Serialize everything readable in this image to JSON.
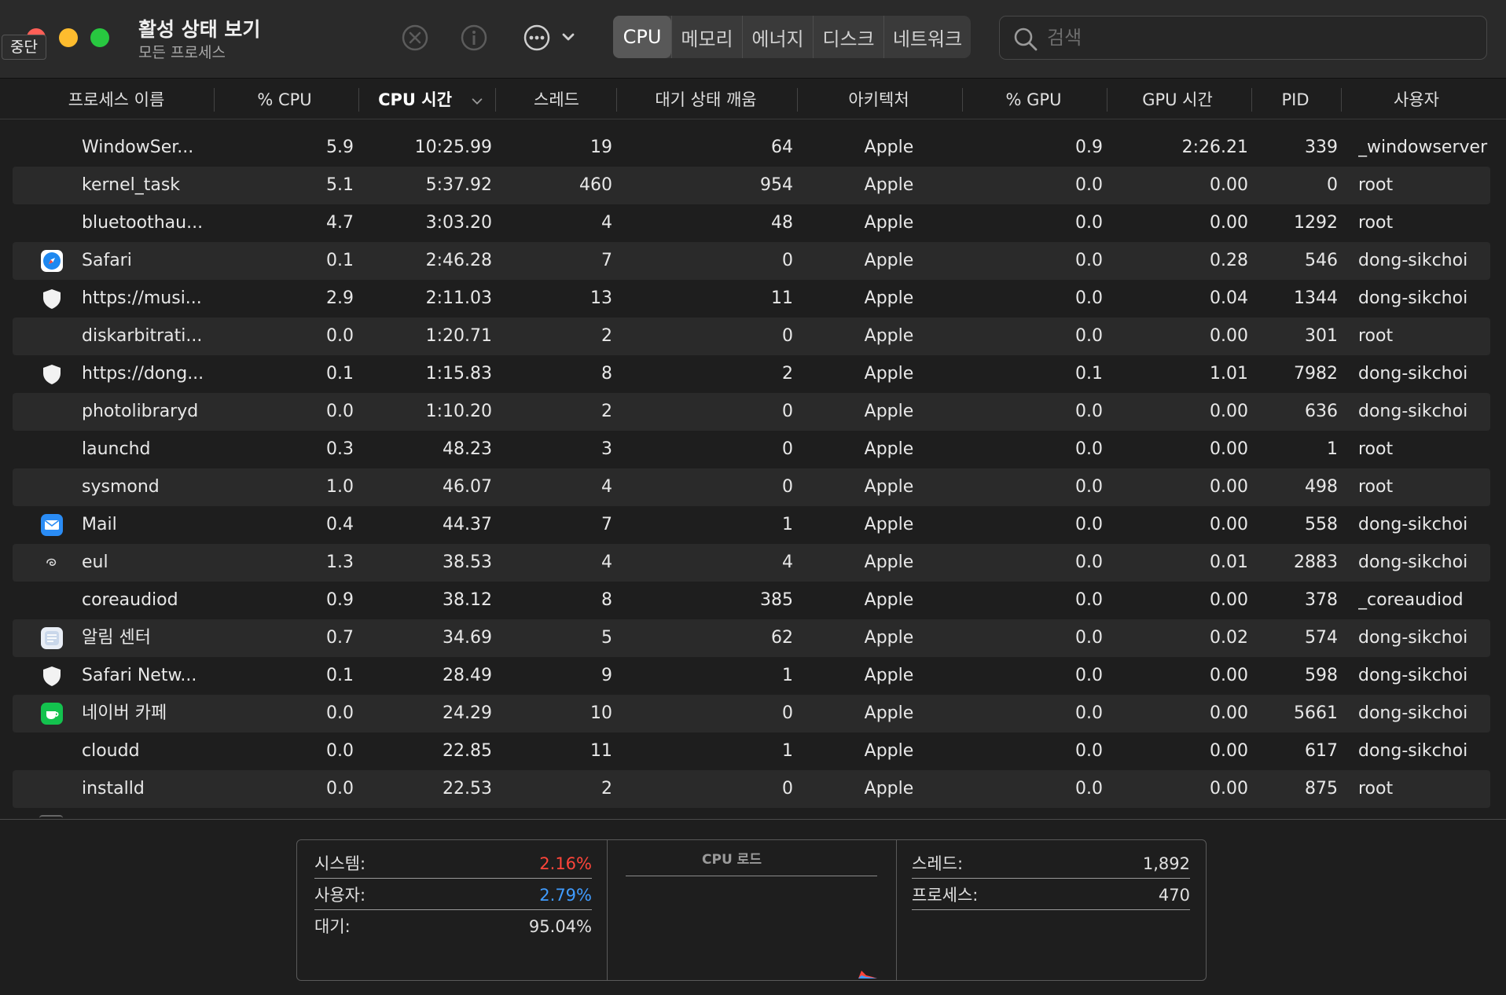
{
  "window": {
    "title": "활성 상태 보기",
    "subtitle": "모든 프로세스",
    "tooltip": "중단"
  },
  "toolbar": {
    "icons": [
      "stop-process-icon",
      "info-icon",
      "more-actions-icon",
      "chevron-down-icon"
    ],
    "tabs": [
      {
        "label": "CPU",
        "active": true
      },
      {
        "label": "메모리",
        "active": false
      },
      {
        "label": "에너지",
        "active": false
      },
      {
        "label": "디스크",
        "active": false
      },
      {
        "label": "네트워크",
        "active": false
      }
    ],
    "search": {
      "placeholder": "검색",
      "value": ""
    }
  },
  "table": {
    "columns": [
      "프로세스 이름",
      "% CPU",
      "CPU 시간",
      "스레드",
      "대기 상태 깨움",
      "아키텍처",
      "% GPU",
      "GPU 시간",
      "PID",
      "사용자"
    ],
    "sorted_column": "CPU 시간",
    "rows": [
      {
        "icon": "",
        "name": "WindowSer...",
        "cpu": "5.9",
        "cpu_time": "10:25.99",
        "threads": "19",
        "wakeups": "64",
        "arch": "Apple",
        "gpu": "0.9",
        "gpu_time": "2:26.21",
        "pid": "339",
        "user": "_windowserver"
      },
      {
        "icon": "",
        "name": "kernel_task",
        "cpu": "5.1",
        "cpu_time": "5:37.92",
        "threads": "460",
        "wakeups": "954",
        "arch": "Apple",
        "gpu": "0.0",
        "gpu_time": "0.00",
        "pid": "0",
        "user": "root"
      },
      {
        "icon": "",
        "name": "bluetoothau...",
        "cpu": "4.7",
        "cpu_time": "3:03.20",
        "threads": "4",
        "wakeups": "48",
        "arch": "Apple",
        "gpu": "0.0",
        "gpu_time": "0.00",
        "pid": "1292",
        "user": "root"
      },
      {
        "icon": "safari-icon",
        "name": "Safari",
        "cpu": "0.1",
        "cpu_time": "2:46.28",
        "threads": "7",
        "wakeups": "0",
        "arch": "Apple",
        "gpu": "0.0",
        "gpu_time": "0.28",
        "pid": "546",
        "user": "dong-sikchoi"
      },
      {
        "icon": "shield-icon",
        "name": "https://musi...",
        "cpu": "2.9",
        "cpu_time": "2:11.03",
        "threads": "13",
        "wakeups": "11",
        "arch": "Apple",
        "gpu": "0.0",
        "gpu_time": "0.04",
        "pid": "1344",
        "user": "dong-sikchoi"
      },
      {
        "icon": "",
        "name": "diskarbitrati...",
        "cpu": "0.0",
        "cpu_time": "1:20.71",
        "threads": "2",
        "wakeups": "0",
        "arch": "Apple",
        "gpu": "0.0",
        "gpu_time": "0.00",
        "pid": "301",
        "user": "root"
      },
      {
        "icon": "shield-icon",
        "name": "https://dong...",
        "cpu": "0.1",
        "cpu_time": "1:15.83",
        "threads": "8",
        "wakeups": "2",
        "arch": "Apple",
        "gpu": "0.1",
        "gpu_time": "1.01",
        "pid": "7982",
        "user": "dong-sikchoi"
      },
      {
        "icon": "",
        "name": "photolibraryd",
        "cpu": "0.0",
        "cpu_time": "1:10.20",
        "threads": "2",
        "wakeups": "0",
        "arch": "Apple",
        "gpu": "0.0",
        "gpu_time": "0.00",
        "pid": "636",
        "user": "dong-sikchoi"
      },
      {
        "icon": "",
        "name": "launchd",
        "cpu": "0.3",
        "cpu_time": "48.23",
        "threads": "3",
        "wakeups": "0",
        "arch": "Apple",
        "gpu": "0.0",
        "gpu_time": "0.00",
        "pid": "1",
        "user": "root"
      },
      {
        "icon": "",
        "name": "sysmond",
        "cpu": "1.0",
        "cpu_time": "46.07",
        "threads": "4",
        "wakeups": "0",
        "arch": "Apple",
        "gpu": "0.0",
        "gpu_time": "0.00",
        "pid": "498",
        "user": "root"
      },
      {
        "icon": "mail-icon",
        "name": "Mail",
        "cpu": "0.4",
        "cpu_time": "44.37",
        "threads": "7",
        "wakeups": "1",
        "arch": "Apple",
        "gpu": "0.0",
        "gpu_time": "0.00",
        "pid": "558",
        "user": "dong-sikchoi"
      },
      {
        "icon": "eul-icon",
        "name": "eul",
        "cpu": "1.3",
        "cpu_time": "38.53",
        "threads": "4",
        "wakeups": "4",
        "arch": "Apple",
        "gpu": "0.0",
        "gpu_time": "0.01",
        "pid": "2883",
        "user": "dong-sikchoi"
      },
      {
        "icon": "",
        "name": "coreaudiod",
        "cpu": "0.9",
        "cpu_time": "38.12",
        "threads": "8",
        "wakeups": "385",
        "arch": "Apple",
        "gpu": "0.0",
        "gpu_time": "0.00",
        "pid": "378",
        "user": "_coreaudiod"
      },
      {
        "icon": "notification-center-icon",
        "name": "알림 센터",
        "cpu": "0.7",
        "cpu_time": "34.69",
        "threads": "5",
        "wakeups": "62",
        "arch": "Apple",
        "gpu": "0.0",
        "gpu_time": "0.02",
        "pid": "574",
        "user": "dong-sikchoi"
      },
      {
        "icon": "shield-icon",
        "name": "Safari Netw...",
        "cpu": "0.1",
        "cpu_time": "28.49",
        "threads": "9",
        "wakeups": "1",
        "arch": "Apple",
        "gpu": "0.0",
        "gpu_time": "0.00",
        "pid": "598",
        "user": "dong-sikchoi"
      },
      {
        "icon": "naver-cafe-icon",
        "name": "네이버 카페",
        "cpu": "0.0",
        "cpu_time": "24.29",
        "threads": "10",
        "wakeups": "0",
        "arch": "Apple",
        "gpu": "0.0",
        "gpu_time": "0.00",
        "pid": "5661",
        "user": "dong-sikchoi"
      },
      {
        "icon": "",
        "name": "cloudd",
        "cpu": "0.0",
        "cpu_time": "22.85",
        "threads": "11",
        "wakeups": "1",
        "arch": "Apple",
        "gpu": "0.0",
        "gpu_time": "0.00",
        "pid": "617",
        "user": "dong-sikchoi"
      },
      {
        "icon": "",
        "name": "installd",
        "cpu": "0.0",
        "cpu_time": "22.53",
        "threads": "2",
        "wakeups": "0",
        "arch": "Apple",
        "gpu": "0.0",
        "gpu_time": "0.00",
        "pid": "875",
        "user": "root"
      }
    ]
  },
  "stats": {
    "system_label": "시스템:",
    "system_value": "2.16%",
    "system_color": "#ff453a",
    "user_label": "사용자:",
    "user_value": "2.79%",
    "user_color": "#409cff",
    "idle_label": "대기:",
    "idle_value": "95.04%",
    "cpu_load_title": "CPU 로드",
    "threads_label": "스레드:",
    "threads_value": "1,892",
    "processes_label": "프로세스:",
    "processes_value": "470"
  }
}
